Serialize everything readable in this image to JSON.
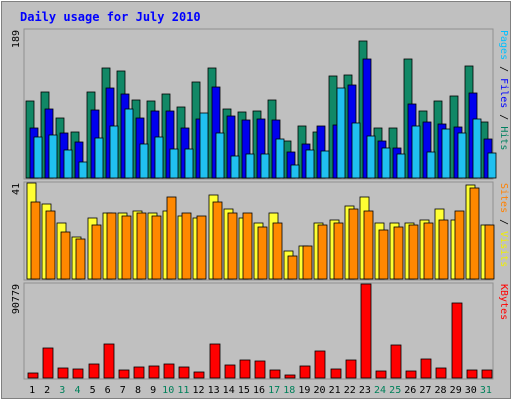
{
  "chart_data": {
    "type": "bar",
    "title": "Daily usage for July 2010",
    "categories": [
      "1",
      "2",
      "3",
      "4",
      "5",
      "6",
      "7",
      "8",
      "9",
      "10",
      "11",
      "12",
      "13",
      "14",
      "15",
      "16",
      "17",
      "18",
      "19",
      "20",
      "21",
      "22",
      "23",
      "24",
      "25",
      "26",
      "27",
      "28",
      "29",
      "30",
      "31"
    ],
    "weekend_days": [
      "3",
      "4",
      "10",
      "11",
      "17",
      "18",
      "24",
      "25",
      "31"
    ],
    "panels": [
      {
        "ymax_label": "189",
        "ymax": 189,
        "right_labels": [
          {
            "text": "Pages",
            "color": "#00c0ff"
          },
          {
            "text": " / ",
            "color": "#000000"
          },
          {
            "text": "Files",
            "color": "#0000ff"
          },
          {
            "text": " / ",
            "color": "#000000"
          },
          {
            "text": "Hits",
            "color": "#008060"
          }
        ],
        "series": [
          {
            "name": "Hits",
            "color": "#118866",
            "values": [
              98,
              110,
              76,
              59,
              110,
              140,
              137,
              100,
              98,
              107,
              91,
              122,
              141,
              88,
              84,
              86,
              100,
              47,
              67,
              59,
              130,
              131,
              175,
              64,
              64,
              152,
              86,
              98,
              105,
              143,
              71
            ]
          },
          {
            "name": "Files",
            "color": "#0000ee",
            "values": [
              64,
              88,
              58,
              46,
              87,
              115,
              107,
              77,
              85,
              85,
              64,
              75,
              116,
              79,
              74,
              75,
              74,
              33,
              44,
              67,
              68,
              119,
              152,
              47,
              38,
              94,
              71,
              69,
              65,
              108,
              50
            ]
          },
          {
            "name": "Pages",
            "color": "#20c0f0",
            "values": [
              52,
              55,
              36,
              20,
              51,
              66,
              88,
              43,
              52,
              37,
              37,
              83,
              58,
              28,
              31,
              31,
              50,
              17,
              36,
              35,
              115,
              70,
              54,
              38,
              31,
              67,
              33,
              63,
              58,
              75,
              32
            ]
          }
        ]
      },
      {
        "ymax_label": "41",
        "ymax": 41,
        "right_labels": [
          {
            "text": "Sites",
            "color": "#ff8000"
          },
          {
            "text": " / ",
            "color": "#000000"
          },
          {
            "text": "Visits",
            "color": "#f0f000"
          }
        ],
        "series": [
          {
            "name": "Visits",
            "color": "#ffff33",
            "values": [
              41,
              32,
              24,
              18,
              26,
              28,
              28,
              29,
              28,
              29,
              27,
              26,
              36,
              30,
              26,
              24,
              28,
              12,
              14,
              24,
              25,
              31,
              35,
              24,
              24,
              24,
              25,
              30,
              25,
              40,
              23
            ]
          },
          {
            "name": "Sites",
            "color": "#ff8800",
            "values": [
              33,
              29,
              20,
              17,
              23,
              28,
              27,
              28,
              27,
              35,
              28,
              27,
              33,
              28,
              28,
              22,
              24,
              10,
              14,
              23,
              24,
              30,
              29,
              21,
              22,
              23,
              24,
              25,
              29,
              39,
              23
            ]
          }
        ]
      },
      {
        "ymax_label": "90779",
        "ymax": 90779,
        "right_labels": [
          {
            "text": "KBytes",
            "color": "#ff0000"
          }
        ],
        "series": [
          {
            "name": "KBytes",
            "color": "#ff0000",
            "values": [
              4700,
              29000,
              9800,
              8500,
              14000,
              33000,
              8100,
              11000,
              12000,
              14000,
              11000,
              5800,
              33000,
              13000,
              17000,
              16000,
              8000,
              3300,
              12000,
              26000,
              8400,
              17000,
              90779,
              6300,
              32000,
              6900,
              18000,
              10000,
              72000,
              7700,
              8100
            ]
          }
        ]
      }
    ]
  }
}
